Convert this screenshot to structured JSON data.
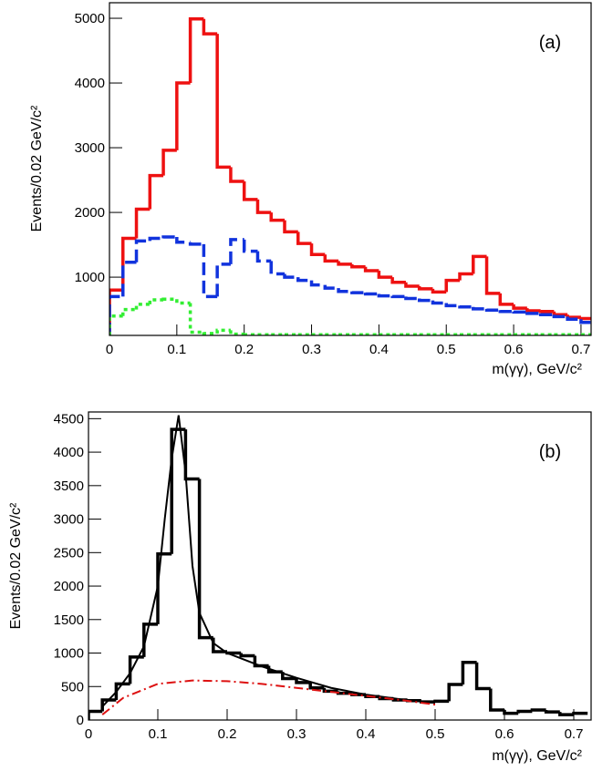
{
  "chart_data": [
    {
      "type": "histogram",
      "label": "(a)",
      "xlabel": "m(γγ), GeV/c²",
      "ylabel": "Events/0.02 GeV/c²",
      "xlim": [
        0,
        0.715
      ],
      "ylim": [
        100,
        5240
      ],
      "xticks": [
        0,
        0.1,
        0.2,
        0.3,
        0.4,
        0.5,
        0.6,
        0.7
      ],
      "yticks": [
        1000,
        2000,
        3000,
        4000,
        5000
      ],
      "bins": [
        0,
        0.02,
        0.04,
        0.06,
        0.08,
        0.1,
        0.12,
        0.14,
        0.16,
        0.18,
        0.2,
        0.22,
        0.24,
        0.26,
        0.28,
        0.3,
        0.32,
        0.34,
        0.36,
        0.38,
        0.4,
        0.42,
        0.44,
        0.46,
        0.48,
        0.5,
        0.52,
        0.54,
        0.56,
        0.58,
        0.6,
        0.62,
        0.64,
        0.66,
        0.68,
        0.7,
        0.72
      ],
      "series": [
        {
          "color": "#ee1111",
          "style": "solid",
          "values": [
            800,
            1600,
            2050,
            2570,
            2960,
            4000,
            4990,
            4760,
            2700,
            2480,
            2200,
            2000,
            1880,
            1700,
            1520,
            1350,
            1250,
            1200,
            1160,
            1100,
            1000,
            920,
            860,
            820,
            770,
            950,
            1050,
            1320,
            750,
            580,
            520,
            480,
            470,
            420,
            380,
            360
          ]
        },
        {
          "color": "#1133dd",
          "style": "dashed",
          "values": [
            700,
            1230,
            1560,
            1600,
            1620,
            1540,
            1510,
            700,
            1200,
            1580,
            1400,
            1250,
            1050,
            1000,
            950,
            880,
            830,
            780,
            760,
            740,
            710,
            700,
            670,
            640,
            600,
            560,
            540,
            510,
            490,
            470,
            460,
            440,
            420,
            390,
            350,
            300
          ]
        },
        {
          "color": "#33ee33",
          "style": "dotted",
          "values": [
            400,
            500,
            580,
            650,
            660,
            600,
            150,
            130,
            180,
            120,
            110,
            110,
            110,
            110,
            110,
            110,
            110,
            110,
            110,
            110,
            110,
            110,
            110,
            110,
            110,
            110,
            110,
            110,
            110,
            110,
            110,
            110,
            110,
            110,
            110,
            110
          ]
        }
      ]
    },
    {
      "type": "histogram",
      "label": "(b)",
      "xlabel": "m(γγ), GeV/c²",
      "ylabel": "Events/0.02 GeV/c²",
      "xlim": [
        0,
        0.725
      ],
      "ylim": [
        0,
        4600
      ],
      "xticks": [
        0,
        0.1,
        0.2,
        0.3,
        0.4,
        0.5,
        0.6,
        0.7
      ],
      "yticks": [
        0,
        500,
        1000,
        1500,
        2000,
        2500,
        3000,
        3500,
        4000,
        4500
      ],
      "bins": [
        0,
        0.02,
        0.04,
        0.06,
        0.08,
        0.1,
        0.12,
        0.14,
        0.16,
        0.18,
        0.2,
        0.22,
        0.24,
        0.26,
        0.28,
        0.3,
        0.32,
        0.34,
        0.36,
        0.38,
        0.4,
        0.42,
        0.44,
        0.46,
        0.48,
        0.5,
        0.52,
        0.54,
        0.56,
        0.58,
        0.6,
        0.62,
        0.64,
        0.66,
        0.68,
        0.7,
        0.72
      ],
      "series": [
        {
          "color": "#000000",
          "style": "solid",
          "values": [
            130,
            300,
            540,
            940,
            1430,
            2480,
            4340,
            3600,
            1230,
            1020,
            1000,
            960,
            810,
            720,
            620,
            560,
            480,
            430,
            400,
            380,
            350,
            320,
            300,
            290,
            270,
            280,
            530,
            860,
            470,
            150,
            100,
            130,
            150,
            120,
            80,
            100
          ]
        }
      ],
      "curves": [
        {
          "color": "#000000",
          "style": "solid",
          "x": [
            0.02,
            0.04,
            0.06,
            0.08,
            0.1,
            0.11,
            0.12,
            0.13,
            0.14,
            0.15,
            0.16,
            0.18,
            0.2,
            0.25,
            0.3,
            0.35,
            0.4,
            0.45,
            0.5
          ],
          "values": [
            200,
            420,
            700,
            1100,
            2000,
            3000,
            3900,
            4550,
            3700,
            2300,
            1600,
            1150,
            1000,
            800,
            630,
            480,
            380,
            310,
            260
          ]
        },
        {
          "color": "#dd1111",
          "style": "dashdot",
          "x": [
            0.02,
            0.05,
            0.1,
            0.15,
            0.2,
            0.25,
            0.3,
            0.35,
            0.4,
            0.45,
            0.5
          ],
          "values": [
            80,
            330,
            540,
            590,
            580,
            540,
            480,
            420,
            360,
            300,
            230
          ]
        }
      ]
    }
  ]
}
